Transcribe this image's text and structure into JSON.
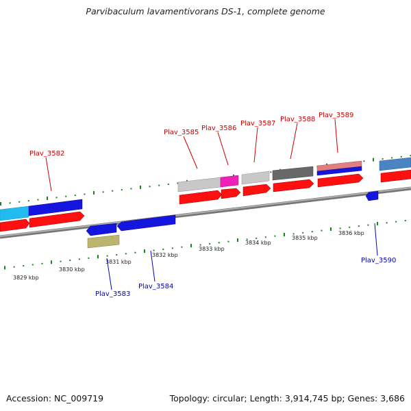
{
  "title": "Parvibaculum lavamentivorans DS-1, complete genome",
  "footer": {
    "accession": "Accession: NC_009719",
    "summary": "Topology: circular; Length: 3,914,745 bp; Genes: 3,686"
  },
  "colors": {
    "red": "#ff1010",
    "blue": "#1515e0",
    "light_gray": "#c8c8c8",
    "dark_gray": "#686868",
    "magenta": "#ee22b8",
    "cyan": "#22bbf0",
    "pink": "#e07e82",
    "khaki": "#bdb470",
    "steel_blue": "#4a84c2",
    "top_label": "#cc0000",
    "bottom_label": "#0000bb",
    "ticks": "#118811",
    "axis": "#888888"
  },
  "ticks": [
    "3829 kbp",
    "3830 kbp",
    "3831 kbp",
    "3832 kbp",
    "3833 kbp",
    "3834 kbp",
    "3835 kbp",
    "3836 kbp"
  ],
  "gene_labels_top": [
    "Plav_3582",
    "Plav_3585",
    "Plav_3586",
    "Plav_3587",
    "Plav_3588",
    "Plav_3589"
  ],
  "gene_labels_bottom": [
    "Plav_3583",
    "Plav_3584",
    "Plav_3590"
  ]
}
